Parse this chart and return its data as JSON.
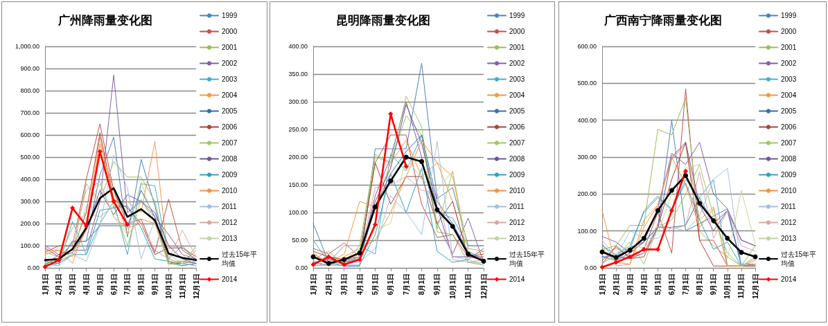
{
  "chart_data": [
    {
      "type": "line",
      "title": "广州降雨量变化图",
      "categories": [
        "1月1日",
        "2月1日",
        "3月1日",
        "4月1日",
        "5月1日",
        "6月1日",
        "7月1日",
        "8月1日",
        "9月1日",
        "10月1日",
        "11月1日",
        "12月1日"
      ],
      "ylim": [
        0,
        1000
      ],
      "yticks": [
        {
          "value": 0,
          "label": "0.00"
        },
        {
          "value": 100,
          "label": "100.00"
        },
        {
          "value": 200,
          "label": "200.00"
        },
        {
          "value": 300,
          "label": "300.00"
        },
        {
          "value": 400,
          "label": "400.00"
        },
        {
          "value": 500,
          "label": "500.00"
        },
        {
          "value": 600,
          "label": "600.00"
        },
        {
          "value": 700,
          "label": "700.00"
        },
        {
          "value": 800,
          "label": "800.00"
        },
        {
          "value": 900,
          "label": "900.00"
        },
        {
          "value": 1000,
          "label": "1,000.00"
        }
      ],
      "grid": "y",
      "legend": "right",
      "line_style": "solid",
      "series": [
        {
          "name": "1999",
          "color": "#4f81bd",
          "marker": "none",
          "values": [
            40,
            30,
            120,
            120,
            420,
            590,
            140,
            490,
            280,
            20,
            30,
            20
          ]
        },
        {
          "name": "2000",
          "color": "#c0504d",
          "marker": "none",
          "values": [
            70,
            100,
            100,
            400,
            650,
            350,
            200,
            220,
            70,
            310,
            80,
            40
          ]
        },
        {
          "name": "2001",
          "color": "#9bbb59",
          "marker": "none",
          "values": [
            20,
            30,
            60,
            380,
            300,
            480,
            410,
            410,
            300,
            30,
            20,
            80
          ]
        },
        {
          "name": "2002",
          "color": "#8064a2",
          "marker": "none",
          "values": [
            100,
            60,
            80,
            80,
            300,
            870,
            250,
            300,
            230,
            150,
            60,
            40
          ]
        },
        {
          "name": "2003",
          "color": "#4bacc6",
          "marker": "none",
          "values": [
            20,
            10,
            210,
            60,
            200,
            300,
            60,
            380,
            370,
            40,
            100,
            30
          ]
        },
        {
          "name": "2004",
          "color": "#f79646",
          "marker": "none",
          "values": [
            60,
            80,
            20,
            200,
            590,
            270,
            300,
            250,
            570,
            20,
            10,
            20
          ]
        },
        {
          "name": "2005",
          "color": "#3a6cb0",
          "marker": "none",
          "values": [
            30,
            20,
            120,
            120,
            190,
            190,
            190,
            350,
            230,
            20,
            20,
            10
          ]
        },
        {
          "name": "2006",
          "color": "#a94441",
          "marker": "none",
          "values": [
            10,
            60,
            80,
            250,
            610,
            310,
            270,
            200,
            60,
            90,
            90,
            50
          ]
        },
        {
          "name": "2007",
          "color": "#a6c46a",
          "marker": "none",
          "values": [
            20,
            40,
            180,
            250,
            230,
            280,
            100,
            310,
            200,
            20,
            10,
            100
          ]
        },
        {
          "name": "2008",
          "color": "#6f569a",
          "marker": "none",
          "values": [
            90,
            50,
            70,
            170,
            350,
            240,
            330,
            300,
            250,
            100,
            40,
            20
          ]
        },
        {
          "name": "2009",
          "color": "#35a0bb",
          "marker": "none",
          "values": [
            15,
            20,
            60,
            60,
            260,
            270,
            280,
            180,
            40,
            30,
            10,
            20
          ]
        },
        {
          "name": "2010",
          "color": "#f4913e",
          "marker": "none",
          "values": [
            80,
            80,
            50,
            170,
            560,
            350,
            150,
            220,
            200,
            40,
            20,
            30
          ]
        },
        {
          "name": "2011",
          "color": "#a5bfe0",
          "marker": "none",
          "values": [
            20,
            10,
            60,
            30,
            190,
            510,
            360,
            40,
            220,
            60,
            20,
            10
          ]
        },
        {
          "name": "2012",
          "color": "#dba5a3",
          "marker": "none",
          "values": [
            70,
            50,
            110,
            350,
            390,
            230,
            180,
            200,
            80,
            40,
            170,
            50
          ]
        },
        {
          "name": "2013",
          "color": "#c3d69b",
          "marker": "none",
          "values": [
            60,
            90,
            60,
            280,
            380,
            230,
            150,
            390,
            200,
            10,
            40,
            90
          ]
        },
        {
          "name": "过去15年平均值",
          "color": "#000000",
          "marker": "none",
          "values": [
            35,
            40,
            85,
            180,
            315,
            360,
            230,
            265,
            215,
            65,
            45,
            35
          ]
        },
        {
          "name": "2014",
          "color": "#ff0000",
          "marker": "diamond",
          "values": [
            5,
            35,
            270,
            190,
            525,
            300,
            195,
            null,
            null,
            null,
            null,
            null
          ]
        }
      ]
    },
    {
      "type": "line",
      "title": "昆明降雨量变化图",
      "categories": [
        "1月1日",
        "2月1日",
        "3月1日",
        "4月1日",
        "5月1日",
        "6月1日",
        "7月1日",
        "8月1日",
        "9月1日",
        "10月1日",
        "11月1日",
        "12月1日"
      ],
      "ylim": [
        0,
        400
      ],
      "yticks": [
        {
          "value": 0,
          "label": "0.00"
        },
        {
          "value": 50,
          "label": "50.00"
        },
        {
          "value": 100,
          "label": "100.00"
        },
        {
          "value": 150,
          "label": "150.00"
        },
        {
          "value": 200,
          "label": "200.00"
        },
        {
          "value": 250,
          "label": "250.00"
        },
        {
          "value": 300,
          "label": "300.00"
        },
        {
          "value": 350,
          "label": "350.00"
        },
        {
          "value": 400,
          "label": "400.00"
        }
      ],
      "grid": "y",
      "legend": "right",
      "line_style": "solid",
      "series": [
        {
          "name": "1999",
          "color": "#4f81bd",
          "marker": "none",
          "values": [
            80,
            10,
            3,
            3,
            215,
            215,
            215,
            370,
            125,
            145,
            40,
            40
          ]
        },
        {
          "name": "2000",
          "color": "#c0504d",
          "marker": "none",
          "values": [
            35,
            25,
            45,
            20,
            190,
            240,
            240,
            115,
            55,
            60,
            20,
            20
          ]
        },
        {
          "name": "2001",
          "color": "#9bbb59",
          "marker": "none",
          "values": [
            15,
            30,
            5,
            30,
            200,
            190,
            275,
            240,
            65,
            60,
            10,
            5
          ]
        },
        {
          "name": "2002",
          "color": "#8064a2",
          "marker": "none",
          "values": [
            10,
            5,
            10,
            15,
            130,
            200,
            300,
            200,
            80,
            25,
            90,
            10
          ]
        },
        {
          "name": "2003",
          "color": "#4bacc6",
          "marker": "none",
          "values": [
            50,
            10,
            40,
            40,
            25,
            205,
            175,
            240,
            100,
            90,
            40,
            40
          ]
        },
        {
          "name": "2004",
          "color": "#f79646",
          "marker": "none",
          "values": [
            25,
            10,
            25,
            120,
            110,
            190,
            230,
            165,
            190,
            120,
            20,
            30
          ]
        },
        {
          "name": "2005",
          "color": "#3a6cb0",
          "marker": "none",
          "values": [
            10,
            5,
            15,
            15,
            110,
            170,
            210,
            240,
            120,
            80,
            30,
            15
          ]
        },
        {
          "name": "2006",
          "color": "#a94441",
          "marker": "none",
          "values": [
            30,
            20,
            15,
            20,
            190,
            115,
            165,
            165,
            80,
            120,
            20,
            25
          ]
        },
        {
          "name": "2007",
          "color": "#a6c46a",
          "marker": "none",
          "values": [
            20,
            10,
            10,
            40,
            205,
            190,
            310,
            255,
            70,
            175,
            10,
            10
          ]
        },
        {
          "name": "2008",
          "color": "#6f569a",
          "marker": "none",
          "values": [
            10,
            15,
            10,
            20,
            120,
            180,
            295,
            225,
            110,
            20,
            20,
            15
          ]
        },
        {
          "name": "2009",
          "color": "#35a0bb",
          "marker": "none",
          "values": [
            5,
            5,
            5,
            5,
            60,
            170,
            100,
            180,
            30,
            10,
            15,
            35
          ]
        },
        {
          "name": "2010",
          "color": "#f4913e",
          "marker": "none",
          "values": [
            28,
            5,
            20,
            35,
            50,
            100,
            165,
            230,
            190,
            165,
            35,
            30
          ]
        },
        {
          "name": "2011",
          "color": "#a5bfe0",
          "marker": "none",
          "values": [
            10,
            5,
            10,
            10,
            35,
            130,
            100,
            60,
            228,
            20,
            15,
            5
          ]
        },
        {
          "name": "2012",
          "color": "#dba5a3",
          "marker": "none",
          "values": [
            5,
            5,
            10,
            20,
            145,
            150,
            165,
            140,
            135,
            15,
            10,
            15
          ]
        },
        {
          "name": "2013",
          "color": "#c3d69b",
          "marker": "none",
          "values": [
            20,
            5,
            10,
            25,
            70,
            80,
            200,
            160,
            140,
            175,
            30,
            10
          ]
        },
        {
          "name": "过去15年平均值",
          "color": "#000000",
          "marker": "circle",
          "values": [
            20,
            8,
            15,
            27,
            110,
            157,
            200,
            192,
            105,
            75,
            25,
            12
          ]
        },
        {
          "name": "2014",
          "color": "#ff0000",
          "marker": "diamond",
          "values": [
            6,
            20,
            6,
            15,
            78,
            278,
            183,
            null,
            null,
            null,
            null,
            null
          ]
        }
      ]
    },
    {
      "type": "line",
      "title": "广西南宁降雨量变化图",
      "categories": [
        "1月1日",
        "2月1日",
        "3月1日",
        "4月1日",
        "5月1日",
        "6月1日",
        "7月1日",
        "8月1日",
        "9月1日",
        "10月1日",
        "11月1日",
        "12月1日"
      ],
      "ylim": [
        0,
        600
      ],
      "yticks": [
        {
          "value": 0,
          "label": "0.00"
        },
        {
          "value": 100,
          "label": "100.00"
        },
        {
          "value": 200,
          "label": "200.00"
        },
        {
          "value": 300,
          "label": "300.00"
        },
        {
          "value": 400,
          "label": "400.00"
        },
        {
          "value": 500,
          "label": "500.00"
        },
        {
          "value": 600,
          "label": "600.00"
        }
      ],
      "grid": "y",
      "legend": "right",
      "line_style": "solid",
      "series": [
        {
          "name": "1999",
          "color": "#4f81bd",
          "marker": "none",
          "values": [
            30,
            20,
            40,
            70,
            110,
            400,
            100,
            120,
            140,
            160,
            10,
            10
          ]
        },
        {
          "name": "2000",
          "color": "#c0504d",
          "marker": "none",
          "values": [
            20,
            55,
            30,
            50,
            150,
            40,
            485,
            75,
            75,
            5,
            5,
            5
          ]
        },
        {
          "name": "2001",
          "color": "#9bbb59",
          "marker": "none",
          "values": [
            50,
            60,
            115,
            115,
            375,
            360,
            460,
            100,
            60,
            30,
            5,
            60
          ]
        },
        {
          "name": "2002",
          "color": "#8064a2",
          "marker": "none",
          "values": [
            85,
            70,
            40,
            70,
            160,
            310,
            280,
            340,
            200,
            160,
            75,
            60
          ]
        },
        {
          "name": "2003",
          "color": "#4bacc6",
          "marker": "none",
          "values": [
            65,
            20,
            50,
            155,
            195,
            155,
            240,
            190,
            240,
            5,
            5,
            5
          ]
        },
        {
          "name": "2004",
          "color": "#f79646",
          "marker": "none",
          "values": [
            155,
            5,
            10,
            130,
            170,
            295,
            335,
            130,
            165,
            5,
            5,
            20
          ]
        },
        {
          "name": "2005",
          "color": "#3a6cb0",
          "marker": "none",
          "values": [
            30,
            30,
            55,
            70,
            110,
            110,
            115,
            190,
            120,
            155,
            5,
            5
          ]
        },
        {
          "name": "2006",
          "color": "#a94441",
          "marker": "none",
          "values": [
            10,
            60,
            25,
            30,
            110,
            240,
            340,
            75,
            5,
            5,
            5,
            5
          ]
        },
        {
          "name": "2007",
          "color": "#a6c46a",
          "marker": "none",
          "values": [
            15,
            30,
            70,
            10,
            110,
            130,
            200,
            280,
            140,
            40,
            5,
            30
          ]
        },
        {
          "name": "2008",
          "color": "#6f569a",
          "marker": "none",
          "values": [
            45,
            30,
            25,
            40,
            110,
            300,
            340,
            170,
            100,
            155,
            75,
            60
          ]
        },
        {
          "name": "2009",
          "color": "#35a0bb",
          "marker": "none",
          "values": [
            60,
            35,
            60,
            150,
            190,
            160,
            230,
            130,
            50,
            70,
            5,
            10
          ]
        },
        {
          "name": "2010",
          "color": "#f4913e",
          "marker": "none",
          "values": [
            55,
            15,
            10,
            110,
            170,
            300,
            225,
            110,
            160,
            5,
            5,
            10
          ]
        },
        {
          "name": "2011",
          "color": "#a5bfe0",
          "marker": "none",
          "values": [
            15,
            30,
            100,
            80,
            80,
            110,
            100,
            140,
            240,
            270,
            5,
            25
          ]
        },
        {
          "name": "2012",
          "color": "#dba5a3",
          "marker": "none",
          "values": [
            75,
            30,
            30,
            40,
            120,
            105,
            115,
            260,
            80,
            155,
            60,
            45
          ]
        },
        {
          "name": "2013",
          "color": "#c3d69b",
          "marker": "none",
          "values": [
            10,
            40,
            60,
            55,
            95,
            200,
            270,
            280,
            140,
            25,
            210,
            65
          ]
        },
        {
          "name": "过去15年平均值",
          "color": "#000000",
          "marker": "circle",
          "values": [
            43,
            28,
            48,
            80,
            155,
            210,
            250,
            175,
            128,
            80,
            42,
            30
          ]
        },
        {
          "name": "2014",
          "color": "#ff0000",
          "marker": "diamond",
          "values": [
            2,
            15,
            30,
            50,
            50,
            155,
            262,
            null,
            null,
            null,
            null,
            null
          ]
        }
      ]
    }
  ]
}
